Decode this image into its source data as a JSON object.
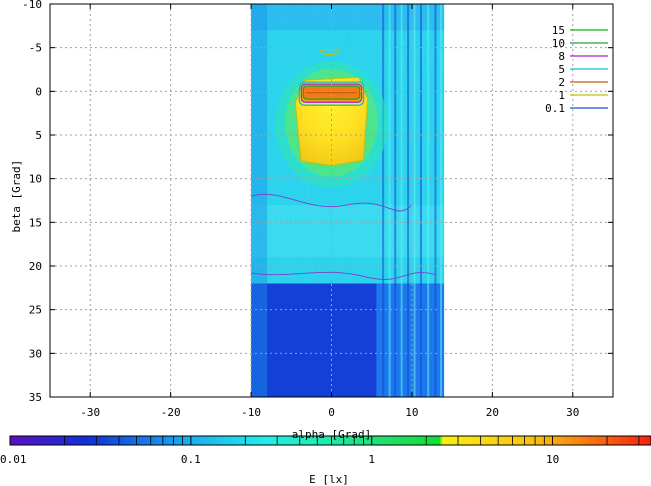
{
  "chart_data": {
    "type": "heatmap",
    "xlabel": "alpha [Grad]",
    "ylabel": "beta [Grad]",
    "xlim": [
      -35,
      35
    ],
    "ylim": [
      35,
      -10
    ],
    "xticks": [
      -30,
      -20,
      -10,
      0,
      10,
      20,
      30
    ],
    "yticks": [
      -10,
      -5,
      0,
      5,
      10,
      15,
      20,
      25,
      30,
      35
    ],
    "grid": true,
    "data_extent_x": [
      -10,
      14
    ],
    "colorbar": {
      "label": "E [lx]",
      "scale": "log",
      "range": [
        0.01,
        35
      ],
      "ticks": [
        0.01,
        0.1,
        1,
        10
      ],
      "tick_labels": [
        "0.01",
        "0.1",
        "1",
        "10"
      ]
    },
    "contours": {
      "legend_position": "top-right",
      "levels": [
        {
          "label": "15",
          "color": "#10b010"
        },
        {
          "label": "10",
          "color": "#20a040"
        },
        {
          "label": "8",
          "color": "#b020d0"
        },
        {
          "label": "5",
          "color": "#10c0d0"
        },
        {
          "label": "2",
          "color": "#c06010"
        },
        {
          "label": "1",
          "color": "#c0c010"
        },
        {
          "label": "0.1",
          "color": "#2050e0"
        }
      ]
    },
    "regions": [
      {
        "feature": "hot spot",
        "alpha": [
          -4.5,
          4.5
        ],
        "beta": [
          -1.8,
          8.5
        ],
        "value_lx": 6
      },
      {
        "feature": "core",
        "alpha": [
          -3.5,
          3.5
        ],
        "beta": [
          -0.6,
          0.9
        ],
        "value_lx": 15
      },
      {
        "feature": "background",
        "alpha": [
          -10,
          14
        ],
        "beta": [
          -10,
          22
        ],
        "value_lx": 0.2
      },
      {
        "feature": "lower region",
        "alpha": [
          -10,
          5
        ],
        "beta": [
          22,
          35
        ],
        "value_lx": 0.03
      }
    ]
  }
}
